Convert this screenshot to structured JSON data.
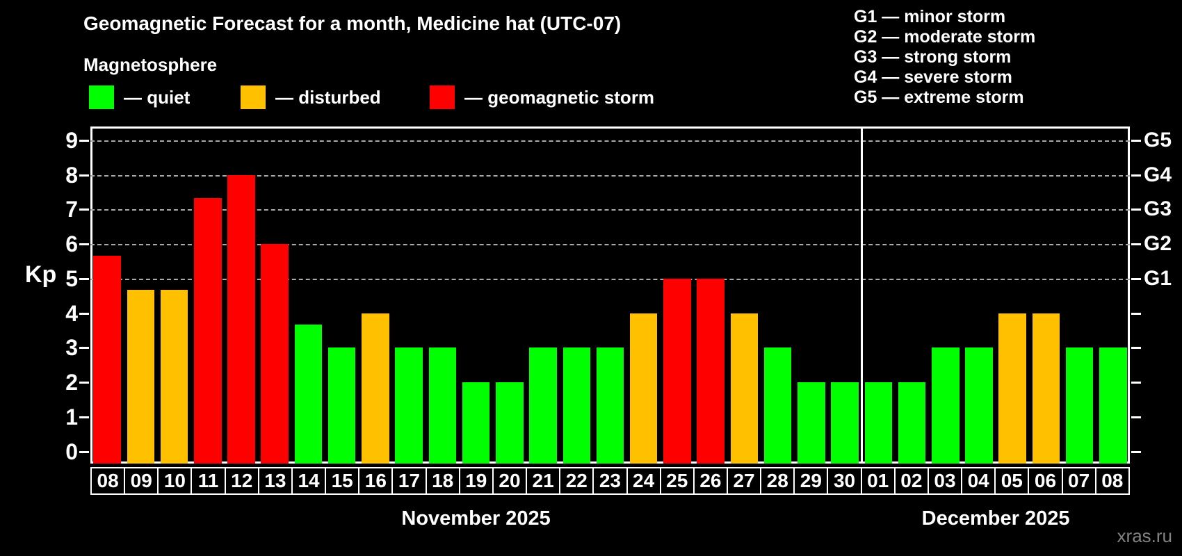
{
  "header": {
    "title": "Geomagnetic Forecast for a month, Medicine hat (UTC-07)",
    "subtitle": "Magnetosphere",
    "legend": [
      {
        "status": "quiet",
        "label": "— quiet"
      },
      {
        "status": "disturbed",
        "label": "— disturbed"
      },
      {
        "status": "storm",
        "label": "— geomagnetic storm"
      }
    ],
    "g_scale_legend": [
      "G1 — minor storm",
      "G2 — moderate storm",
      "G3 — strong storm",
      "G4 — severe storm",
      "G5 — extreme storm"
    ]
  },
  "chart_data": {
    "type": "bar",
    "title": "Geomagnetic Forecast for a month, Medicine hat (UTC-07)",
    "ylabel": "Kp",
    "ylim": [
      -0.35,
      9.4
    ],
    "y_ticks": [
      0,
      1,
      2,
      3,
      4,
      5,
      6,
      7,
      8,
      9
    ],
    "gridlines_at": [
      5,
      6,
      7,
      8,
      9
    ],
    "grid": "dashed, only at storm levels G1–G5",
    "legend_position": "top",
    "colors": {
      "quiet": "#00ff00",
      "disturbed": "#ffc000",
      "storm": "#ff0000"
    },
    "g_levels": [
      {
        "value": 5,
        "label": "G1"
      },
      {
        "value": 6,
        "label": "G2"
      },
      {
        "value": 7,
        "label": "G3"
      },
      {
        "value": 8,
        "label": "G4"
      },
      {
        "value": 9,
        "label": "G5"
      }
    ],
    "months": [
      {
        "label": "November 2025",
        "days": 23
      },
      {
        "label": "December 2025",
        "days": 8
      }
    ],
    "bars": [
      {
        "date": "08",
        "month": "November",
        "value": 5.67,
        "status": "storm"
      },
      {
        "date": "09",
        "month": "November",
        "value": 4.67,
        "status": "disturbed"
      },
      {
        "date": "10",
        "month": "November",
        "value": 4.67,
        "status": "disturbed"
      },
      {
        "date": "11",
        "month": "November",
        "value": 7.33,
        "status": "storm"
      },
      {
        "date": "12",
        "month": "November",
        "value": 8,
        "status": "storm"
      },
      {
        "date": "13",
        "month": "November",
        "value": 6,
        "status": "storm"
      },
      {
        "date": "14",
        "month": "November",
        "value": 3.67,
        "status": "quiet"
      },
      {
        "date": "15",
        "month": "November",
        "value": 3,
        "status": "quiet"
      },
      {
        "date": "16",
        "month": "November",
        "value": 4,
        "status": "disturbed"
      },
      {
        "date": "17",
        "month": "November",
        "value": 3,
        "status": "quiet"
      },
      {
        "date": "18",
        "month": "November",
        "value": 3,
        "status": "quiet"
      },
      {
        "date": "19",
        "month": "November",
        "value": 2,
        "status": "quiet"
      },
      {
        "date": "20",
        "month": "November",
        "value": 2,
        "status": "quiet"
      },
      {
        "date": "21",
        "month": "November",
        "value": 3,
        "status": "quiet"
      },
      {
        "date": "22",
        "month": "November",
        "value": 3,
        "status": "quiet"
      },
      {
        "date": "23",
        "month": "November",
        "value": 3,
        "status": "quiet"
      },
      {
        "date": "24",
        "month": "November",
        "value": 4,
        "status": "disturbed"
      },
      {
        "date": "25",
        "month": "November",
        "value": 5,
        "status": "storm"
      },
      {
        "date": "26",
        "month": "November",
        "value": 5,
        "status": "storm"
      },
      {
        "date": "27",
        "month": "November",
        "value": 4,
        "status": "disturbed"
      },
      {
        "date": "28",
        "month": "November",
        "value": 3,
        "status": "quiet"
      },
      {
        "date": "29",
        "month": "November",
        "value": 2,
        "status": "quiet"
      },
      {
        "date": "30",
        "month": "November",
        "value": 2,
        "status": "quiet"
      },
      {
        "date": "01",
        "month": "December",
        "value": 2,
        "status": "quiet"
      },
      {
        "date": "02",
        "month": "December",
        "value": 2,
        "status": "quiet"
      },
      {
        "date": "03",
        "month": "December",
        "value": 3,
        "status": "quiet"
      },
      {
        "date": "04",
        "month": "December",
        "value": 3,
        "status": "quiet"
      },
      {
        "date": "05",
        "month": "December",
        "value": 4,
        "status": "disturbed"
      },
      {
        "date": "06",
        "month": "December",
        "value": 4,
        "status": "disturbed"
      },
      {
        "date": "07",
        "month": "December",
        "value": 3,
        "status": "quiet"
      },
      {
        "date": "08",
        "month": "December",
        "value": 3,
        "status": "quiet"
      }
    ]
  },
  "footer": {
    "watermark": "xras.ru"
  }
}
